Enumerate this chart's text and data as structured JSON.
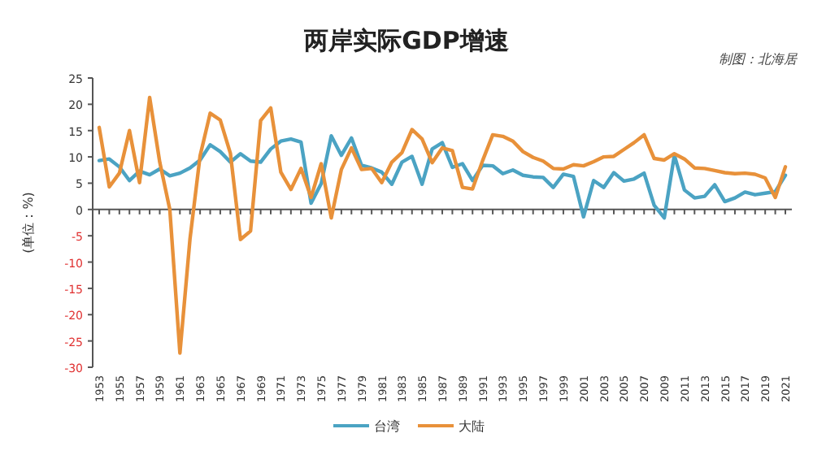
{
  "chart_data": {
    "type": "line",
    "title": "两岸实际GDP增速",
    "ylabel": "(单位：%)",
    "annotations": [
      "制图：北海居"
    ],
    "categories": [
      "1953",
      null,
      "1955",
      null,
      "1957",
      null,
      "1959",
      null,
      "1961",
      null,
      "1963",
      null,
      "1965",
      null,
      "1967",
      null,
      "1969",
      null,
      "1971",
      null,
      "1973",
      null,
      "1975",
      null,
      "1977",
      null,
      "1979",
      null,
      "1981",
      null,
      "1983",
      null,
      "1985",
      null,
      "1987",
      null,
      "1989",
      null,
      "1991",
      null,
      "1993",
      null,
      "1995",
      null,
      "1997",
      null,
      "1999",
      null,
      "2001",
      null,
      "2003",
      null,
      "2005",
      null,
      "2007",
      null,
      "2009",
      null,
      "2011",
      null,
      "2013",
      null,
      "2015",
      null,
      "2017",
      null,
      "2019",
      null,
      "2021"
    ],
    "series": [
      {
        "name": "台湾",
        "color": "#4ba3c3",
        "values": [
          9.3,
          9.6,
          8.1,
          5.5,
          7.3,
          6.6,
          7.7,
          6.4,
          6.9,
          7.9,
          9.4,
          12.3,
          11.0,
          9.0,
          10.6,
          9.2,
          9.0,
          11.5,
          13.0,
          13.4,
          12.8,
          1.2,
          4.9,
          14.0,
          10.3,
          13.6,
          8.4,
          7.9,
          7.1,
          4.8,
          9.0,
          10.1,
          4.8,
          11.5,
          12.7,
          8.0,
          8.7,
          5.5,
          8.4,
          8.3,
          6.8,
          7.5,
          6.5,
          6.2,
          6.1,
          4.2,
          6.7,
          6.3,
          -1.4,
          5.5,
          4.2,
          7.0,
          5.4,
          5.8,
          6.9,
          0.8,
          -1.6,
          10.3,
          3.7,
          2.2,
          2.5,
          4.7,
          1.5,
          2.2,
          3.3,
          2.8,
          3.1,
          3.4,
          6.5
        ]
      },
      {
        "name": "大陆",
        "color": "#e8913a",
        "values": [
          15.6,
          4.3,
          6.9,
          15.0,
          5.1,
          21.3,
          9.0,
          0.0,
          -27.3,
          -5.6,
          10.2,
          18.3,
          17.0,
          10.7,
          -5.7,
          -4.1,
          16.9,
          19.3,
          7.1,
          3.8,
          7.8,
          2.3,
          8.7,
          -1.6,
          7.6,
          11.7,
          7.6,
          7.8,
          5.1,
          9.0,
          10.8,
          15.2,
          13.4,
          8.9,
          11.7,
          11.2,
          4.2,
          3.9,
          9.3,
          14.2,
          13.9,
          13.0,
          11.0,
          9.9,
          9.2,
          7.8,
          7.7,
          8.5,
          8.3,
          9.1,
          10.0,
          10.1,
          11.4,
          12.7,
          14.2,
          9.7,
          9.4,
          10.6,
          9.6,
          7.9,
          7.8,
          7.4,
          7.0,
          6.8,
          6.9,
          6.7,
          6.0,
          2.3,
          8.1
        ]
      }
    ],
    "ylim": [
      -30,
      25
    ],
    "yticks": [
      -30,
      -25,
      -20,
      -15,
      -10,
      -5,
      0,
      5,
      10,
      15,
      20,
      25
    ],
    "legend": "bottom",
    "marker": "none",
    "line_style": "solid"
  }
}
